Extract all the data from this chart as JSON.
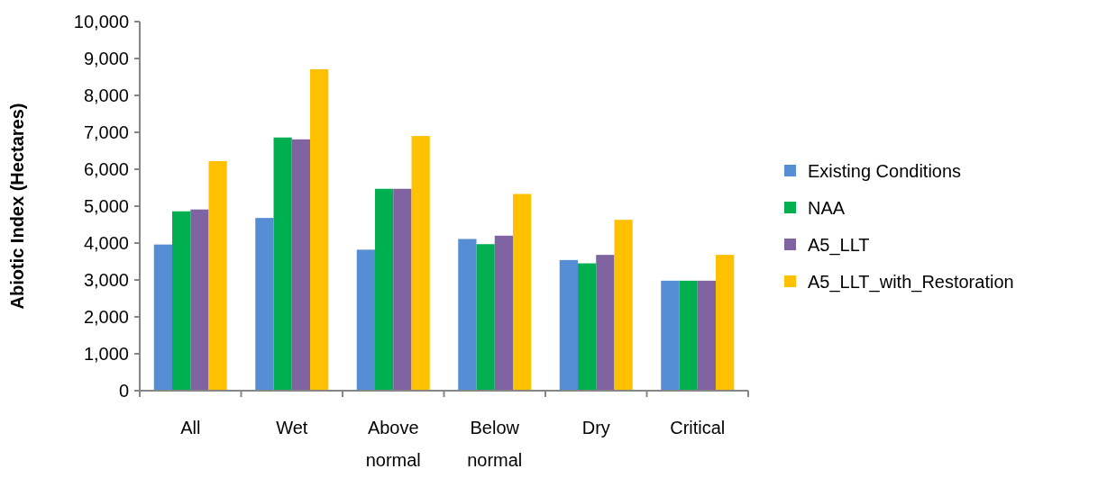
{
  "chart_data": {
    "type": "bar",
    "ylabel": "Abiotic Index (Hectares)",
    "categories": [
      "All",
      "Wet",
      "Above normal",
      "Below normal",
      "Dry",
      "Critical"
    ],
    "series": [
      {
        "name": "Existing Conditions",
        "color": "#558ed5",
        "values": [
          3960,
          4680,
          3820,
          4110,
          3540,
          2980
        ]
      },
      {
        "name": "NAA",
        "color": "#00b050",
        "values": [
          4860,
          6860,
          5470,
          3970,
          3450,
          2980
        ]
      },
      {
        "name": "A5_LLT",
        "color": "#8064a2",
        "values": [
          4910,
          6810,
          5470,
          4200,
          3680,
          2980
        ]
      },
      {
        "name": "A5_LLT_with_Restoration",
        "color": "#ffc000",
        "values": [
          6220,
          8710,
          6900,
          5330,
          4630,
          3680
        ]
      }
    ],
    "ylim": [
      0,
      10000
    ],
    "yticks": [
      {
        "value": 0,
        "label": "0"
      },
      {
        "value": 1000,
        "label": "1,000"
      },
      {
        "value": 2000,
        "label": "2,000"
      },
      {
        "value": 3000,
        "label": "3,000"
      },
      {
        "value": 4000,
        "label": "4,000"
      },
      {
        "value": 5000,
        "label": "5,000"
      },
      {
        "value": 6000,
        "label": "6,000"
      },
      {
        "value": 7000,
        "label": "7,000"
      },
      {
        "value": 8000,
        "label": "8,000"
      },
      {
        "value": 9000,
        "label": "9,000"
      },
      {
        "value": 10000,
        "label": "10,000"
      }
    ],
    "legend": "right"
  }
}
